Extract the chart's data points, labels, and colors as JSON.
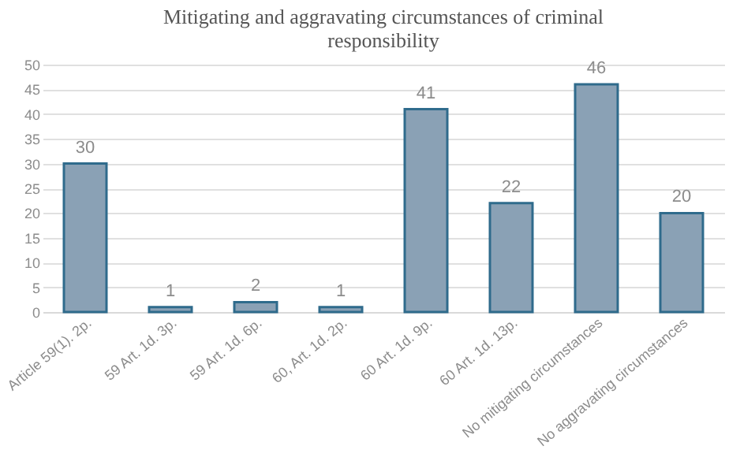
{
  "chart_data": {
    "type": "bar",
    "title": "Mitigating and aggravating circumstances of criminal responsibility",
    "categories": [
      "Article 59(1). 2p.",
      "59 Art. 1d. 3p.",
      "59 Art. 1d. 6p.",
      "60, Art. 1d. 2p.",
      "60 Art. 1d. 9p.",
      "60 Art. 1d. 13p.",
      "No mitigating circumstances",
      "No aggravating circumstances"
    ],
    "values": [
      30,
      1,
      2,
      1,
      41,
      22,
      46,
      20
    ],
    "color": "#8aa1b5",
    "ylim": [
      0,
      50
    ],
    "yticks": [
      0,
      5,
      10,
      15,
      20,
      25,
      30,
      35,
      40,
      45,
      50
    ],
    "grid": "y",
    "data_labels": true
  }
}
